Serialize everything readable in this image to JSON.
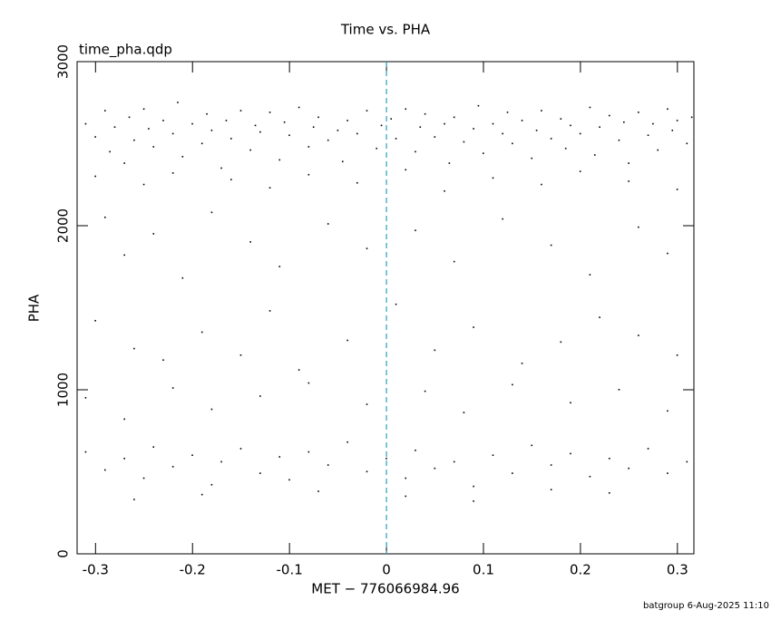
{
  "chart_data": {
    "type": "scatter",
    "title": "Time vs. PHA",
    "subtitle": "time_pha.qdp",
    "x_label": "MET − 776066984.96",
    "y_label": "PHA",
    "footer": "batgroup  6-Aug-2025 11:10",
    "xlim": [
      -0.319,
      0.317
    ],
    "ylim": [
      0,
      3000
    ],
    "xticks": [
      -0.3,
      -0.2,
      -0.1,
      0,
      0.1,
      0.2,
      0.3
    ],
    "yticks": [
      0,
      1000,
      2000,
      3000
    ],
    "vline": 0,
    "vline_color": "#2a9fb5",
    "color": "#000000",
    "series": [
      {
        "x": [
          -0.31,
          -0.3,
          -0.29,
          -0.285,
          -0.28,
          -0.27,
          -0.265,
          -0.26,
          -0.25,
          -0.245,
          -0.24,
          -0.23,
          -0.22,
          -0.215,
          -0.21,
          -0.2,
          -0.19,
          -0.185,
          -0.18,
          -0.17,
          -0.165,
          -0.16,
          -0.15,
          -0.14,
          -0.135,
          -0.13,
          -0.12,
          -0.11,
          -0.105,
          -0.1,
          -0.09,
          -0.08,
          -0.075,
          -0.07,
          -0.06,
          -0.05,
          -0.045,
          -0.04,
          -0.03,
          -0.02,
          -0.01,
          -0.005,
          0.005,
          0.01,
          0.02,
          0.03,
          0.035,
          0.04,
          0.05,
          0.06,
          0.065,
          0.07,
          0.08,
          0.09,
          0.095,
          0.1,
          0.11,
          0.12,
          0.125,
          0.13,
          0.14,
          0.15,
          0.155,
          0.16,
          0.17,
          0.18,
          0.185,
          0.19,
          0.2,
          0.21,
          0.215,
          0.22,
          0.23,
          0.24,
          0.245,
          0.25,
          0.26,
          0.27,
          0.275,
          0.28,
          0.29,
          0.295,
          0.3,
          0.31,
          0.315,
          -0.3,
          -0.25,
          -0.22,
          -0.16,
          -0.12,
          -0.08,
          -0.03,
          0.02,
          0.06,
          0.11,
          0.16,
          0.2,
          0.25,
          0.3,
          -0.29,
          -0.27,
          -0.24,
          -0.21,
          -0.18,
          -0.14,
          -0.11,
          -0.06,
          -0.02,
          0.03,
          0.07,
          0.12,
          0.17,
          0.21,
          0.26,
          0.29,
          -0.3,
          -0.26,
          -0.23,
          -0.19,
          -0.15,
          -0.12,
          -0.09,
          -0.04,
          0.01,
          0.05,
          0.09,
          0.14,
          0.18,
          0.22,
          0.26,
          0.3,
          -0.31,
          -0.27,
          -0.22,
          -0.18,
          -0.13,
          -0.08,
          -0.02,
          0.04,
          0.08,
          0.13,
          0.19,
          0.24,
          0.29,
          -0.31,
          -0.29,
          -0.27,
          -0.25,
          -0.24,
          -0.22,
          -0.2,
          -0.18,
          -0.17,
          -0.15,
          -0.13,
          -0.11,
          -0.1,
          -0.08,
          -0.06,
          -0.04,
          -0.02,
          0.0,
          0.02,
          0.03,
          0.05,
          0.07,
          0.09,
          0.11,
          0.13,
          0.15,
          0.17,
          0.19,
          0.21,
          0.23,
          0.25,
          0.27,
          0.29,
          0.31,
          -0.26,
          -0.19,
          -0.07,
          0.02,
          0.09,
          0.17,
          0.23
        ],
        "values": [
          2620,
          2540,
          2700,
          2450,
          2600,
          2380,
          2660,
          2520,
          2710,
          2590,
          2480,
          2640,
          2560,
          2750,
          2420,
          2620,
          2500,
          2680,
          2580,
          2350,
          2640,
          2530,
          2700,
          2460,
          2610,
          2570,
          2690,
          2400,
          2630,
          2550,
          2720,
          2480,
          2600,
          2660,
          2520,
          2580,
          2390,
          2640,
          2560,
          2700,
          2470,
          2610,
          2650,
          2530,
          2710,
          2450,
          2600,
          2680,
          2540,
          2620,
          2380,
          2660,
          2510,
          2590,
          2730,
          2440,
          2620,
          2560,
          2690,
          2500,
          2640,
          2410,
          2580,
          2700,
          2530,
          2650,
          2470,
          2610,
          2560,
          2720,
          2430,
          2600,
          2670,
          2520,
          2630,
          2380,
          2690,
          2550,
          2620,
          2460,
          2710,
          2580,
          2640,
          2500,
          2660,
          2300,
          2250,
          2320,
          2280,
          2230,
          2310,
          2260,
          2340,
          2210,
          2290,
          2250,
          2330,
          2270,
          2220,
          2050,
          1820,
          1950,
          1680,
          2080,
          1900,
          1750,
          2010,
          1860,
          1970,
          1780,
          2040,
          1880,
          1700,
          1990,
          1830,
          1420,
          1250,
          1180,
          1350,
          1210,
          1480,
          1120,
          1300,
          1520,
          1240,
          1380,
          1160,
          1290,
          1440,
          1330,
          1210,
          950,
          820,
          1010,
          880,
          960,
          1040,
          910,
          990,
          860,
          1030,
          920,
          1000,
          870,
          620,
          510,
          580,
          460,
          650,
          530,
          600,
          420,
          560,
          640,
          490,
          590,
          450,
          620,
          540,
          680,
          500,
          580,
          460,
          630,
          520,
          560,
          410,
          600,
          490,
          660,
          540,
          610,
          470,
          580,
          520,
          640,
          490,
          560,
          330,
          360,
          380,
          350,
          320,
          390,
          370
        ]
      }
    ]
  }
}
